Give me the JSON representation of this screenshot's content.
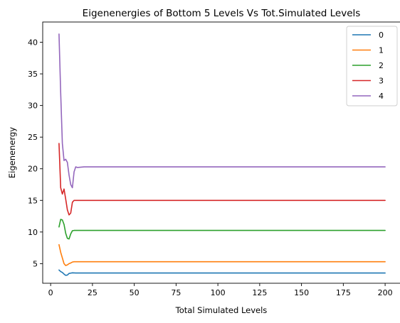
{
  "chart_data": {
    "type": "line",
    "title": "Eigenenergies of Bottom 5 Levels Vs Tot.Simulated Levels",
    "xlabel": "Total Simulated Levels",
    "ylabel": "Eigenenergy",
    "xlim": [
      -4.75,
      209.75
    ],
    "ylim": [
      1.9,
      43.2
    ],
    "xticks": [
      0,
      25,
      50,
      75,
      100,
      125,
      150,
      175,
      200
    ],
    "xtick_labels": [
      "0",
      "25",
      "50",
      "75",
      "100",
      "125",
      "150",
      "175",
      "200"
    ],
    "yticks": [
      5,
      10,
      15,
      20,
      25,
      30,
      35,
      40
    ],
    "ytick_labels": [
      "5",
      "10",
      "15",
      "20",
      "25",
      "30",
      "35",
      "40"
    ],
    "grid": false,
    "legend_position": "top-right",
    "series": [
      {
        "name": "0",
        "color": "#1f77b4",
        "points": [
          [
            5,
            4.0
          ],
          [
            6,
            3.75
          ],
          [
            7,
            3.6
          ],
          [
            8,
            3.35
          ],
          [
            9,
            3.15
          ],
          [
            10,
            3.2
          ],
          [
            11,
            3.45
          ],
          [
            12,
            3.5
          ],
          [
            13,
            3.55
          ],
          [
            15,
            3.52
          ],
          [
            20,
            3.52
          ],
          [
            50,
            3.52
          ],
          [
            100,
            3.52
          ],
          [
            150,
            3.52
          ],
          [
            200,
            3.52
          ]
        ]
      },
      {
        "name": "1",
        "color": "#ff7f0e",
        "points": [
          [
            5,
            8.0
          ],
          [
            6,
            6.8
          ],
          [
            7,
            5.9
          ],
          [
            8,
            5.0
          ],
          [
            9,
            4.7
          ],
          [
            10,
            4.8
          ],
          [
            11,
            5.0
          ],
          [
            12,
            5.1
          ],
          [
            13,
            5.25
          ],
          [
            14,
            5.3
          ],
          [
            20,
            5.3
          ],
          [
            50,
            5.3
          ],
          [
            100,
            5.3
          ],
          [
            150,
            5.3
          ],
          [
            200,
            5.3
          ]
        ]
      },
      {
        "name": "2",
        "color": "#2ca02c",
        "points": [
          [
            5,
            10.8
          ],
          [
            6,
            12.0
          ],
          [
            7,
            11.9
          ],
          [
            8,
            11.2
          ],
          [
            9,
            9.8
          ],
          [
            10,
            9.0
          ],
          [
            11,
            8.9
          ],
          [
            12,
            9.7
          ],
          [
            13,
            10.2
          ],
          [
            14,
            10.25
          ],
          [
            20,
            10.25
          ],
          [
            50,
            10.25
          ],
          [
            100,
            10.25
          ],
          [
            150,
            10.25
          ],
          [
            200,
            10.25
          ]
        ]
      },
      {
        "name": "3",
        "color": "#d62728",
        "points": [
          [
            5,
            24.0
          ],
          [
            6,
            17.0
          ],
          [
            7,
            16.0
          ],
          [
            8,
            16.8
          ],
          [
            9,
            15.2
          ],
          [
            10,
            13.5
          ],
          [
            11,
            12.7
          ],
          [
            12,
            13.0
          ],
          [
            13,
            14.7
          ],
          [
            14,
            15.0
          ],
          [
            20,
            15.0
          ],
          [
            50,
            15.0
          ],
          [
            100,
            15.0
          ],
          [
            150,
            15.0
          ],
          [
            200,
            15.0
          ]
        ]
      },
      {
        "name": "4",
        "color": "#9467bd",
        "points": [
          [
            5,
            41.3
          ],
          [
            6,
            32.0
          ],
          [
            7,
            24.0
          ],
          [
            8,
            21.3
          ],
          [
            9,
            21.5
          ],
          [
            10,
            21.0
          ],
          [
            11,
            19.0
          ],
          [
            12,
            17.5
          ],
          [
            13,
            17.0
          ],
          [
            14,
            19.5
          ],
          [
            15,
            20.3
          ],
          [
            16,
            20.2
          ],
          [
            20,
            20.3
          ],
          [
            50,
            20.3
          ],
          [
            100,
            20.3
          ],
          [
            150,
            20.3
          ],
          [
            200,
            20.3
          ]
        ]
      }
    ]
  }
}
